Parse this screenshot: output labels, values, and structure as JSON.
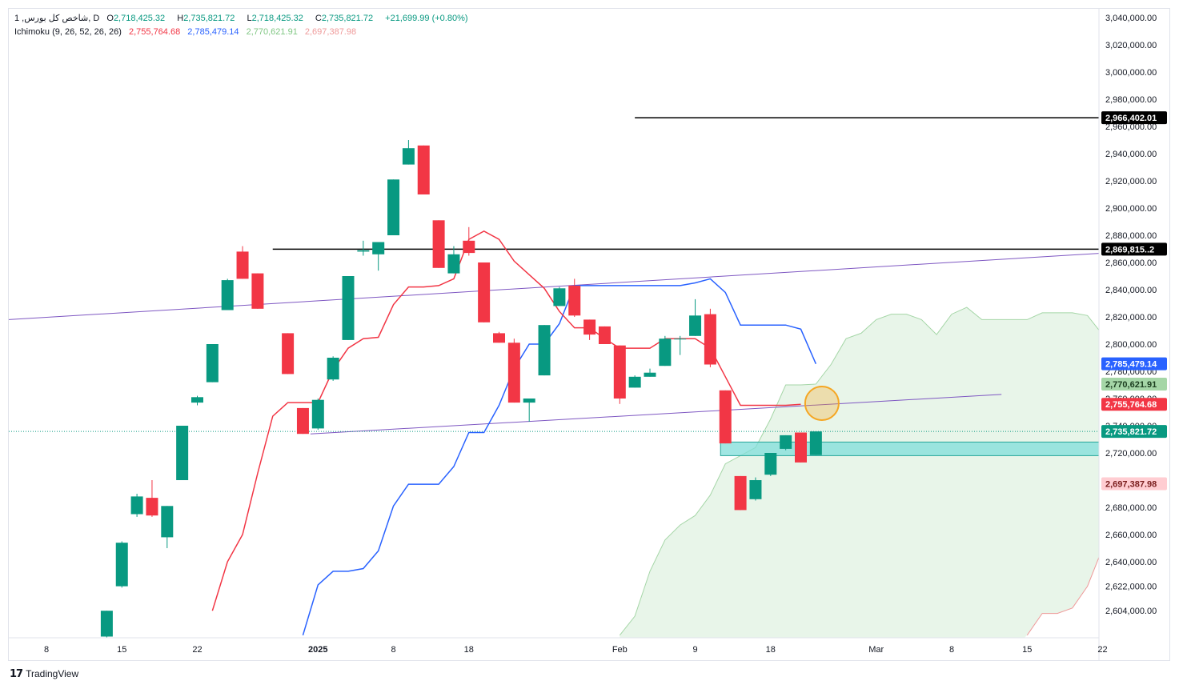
{
  "legend": {
    "symbol": "1 ,شاخص کل بورس, D",
    "o_label": "O",
    "o_value": "2,718,425.32",
    "h_label": "H",
    "h_value": "2,735,821.72",
    "l_label": "L",
    "l_value": "2,718,425.32",
    "c_label": "C",
    "c_value": "2,735,821.72",
    "change": "+21,699.99 (+0.80%)",
    "indicator_name": "Ichimoku (9, 26, 52, 26, 26)",
    "ind_values": [
      "2,755,764.68",
      "2,785,479.14",
      "2,770,621.91",
      "2,697,387.98"
    ]
  },
  "colors": {
    "up": "#089981",
    "down": "#f23645",
    "tenkan": "#f23645",
    "kijun": "#2962ff",
    "span_a": "#a5d6a7",
    "span_b": "#ef9a9a",
    "cloud": "#e8f5e9",
    "trendline": "#7e57c2",
    "hline": "#000000",
    "zone_fill": "#80deda",
    "zone_stroke": "#26a69a",
    "circle": "#f5a623"
  },
  "footer": {
    "brand": "TradingView"
  },
  "chart_data": {
    "type": "candlestick",
    "title": "",
    "y_axis": {
      "min": 2586000,
      "max": 3050000,
      "ticks": [
        3040000,
        3020000,
        3000000,
        2980000,
        2960000,
        2940000,
        2920000,
        2900000,
        2880000,
        2860000,
        2840000,
        2820000,
        2800000,
        2780000,
        2760000,
        2740000,
        2720000,
        2700000,
        2680000,
        2660000,
        2640000,
        2622000,
        2604000
      ],
      "tick_labels": [
        "3,040,000.00",
        "3,020,000.00",
        "3,000,000.00",
        "2,980,000.00",
        "2,960,000.00",
        "2,940,000.00",
        "2,920,000.00",
        "2,900,000.00",
        "2,880,000.00",
        "2,860,000.00",
        "2,840,000.00",
        "2,820,000.00",
        "2,800,000.00",
        "2,780,000.00",
        "2,760,000.00",
        "2,740,000.00",
        "2,720,000.00",
        "2,700,000.00",
        "2,680,000.00",
        "2,660,000.00",
        "2,640,000.00",
        "2,622,000.00",
        "2,604,000.00"
      ]
    },
    "x_axis": {
      "ticks": [
        {
          "i": 0,
          "label": "8"
        },
        {
          "i": 5,
          "label": "15"
        },
        {
          "i": 10,
          "label": "22"
        },
        {
          "i": 18,
          "label": "2025"
        },
        {
          "i": 23,
          "label": "8"
        },
        {
          "i": 28,
          "label": "18"
        },
        {
          "i": 38,
          "label": "Feb"
        },
        {
          "i": 43,
          "label": "9"
        },
        {
          "i": 48,
          "label": "18"
        },
        {
          "i": 55,
          "label": "Mar"
        },
        {
          "i": 60,
          "label": "8"
        },
        {
          "i": 65,
          "label": "15"
        },
        {
          "i": 70,
          "label": "22"
        }
      ],
      "bold_labels": [
        "2025"
      ]
    },
    "candles": [
      {
        "i": 4,
        "o": 2585000,
        "h": 2604000,
        "l": 2580000,
        "c": 2604000
      },
      {
        "i": 5,
        "o": 2622000,
        "h": 2655000,
        "l": 2621000,
        "c": 2654000
      },
      {
        "i": 6,
        "o": 2675000,
        "h": 2690000,
        "l": 2673000,
        "c": 2688000
      },
      {
        "i": 7,
        "o": 2687000,
        "h": 2700000,
        "l": 2673000,
        "c": 2674000
      },
      {
        "i": 8,
        "o": 2658000,
        "h": 2681000,
        "l": 2650000,
        "c": 2681000
      },
      {
        "i": 9,
        "o": 2700000,
        "h": 2740000,
        "l": 2700000,
        "c": 2740000
      },
      {
        "i": 10,
        "o": 2757000,
        "h": 2762000,
        "l": 2755000,
        "c": 2761000
      },
      {
        "i": 11,
        "o": 2772000,
        "h": 2800000,
        "l": 2772000,
        "c": 2800000
      },
      {
        "i": 12,
        "o": 2825000,
        "h": 2848000,
        "l": 2825000,
        "c": 2847000
      },
      {
        "i": 13,
        "o": 2868000,
        "h": 2872000,
        "l": 2848000,
        "c": 2848000
      },
      {
        "i": 14,
        "o": 2852000,
        "h": 2852000,
        "l": 2826000,
        "c": 2826000
      },
      {
        "i": 16,
        "o": 2808000,
        "h": 2808000,
        "l": 2778000,
        "c": 2778000
      },
      {
        "i": 17,
        "o": 2753000,
        "h": 2753000,
        "l": 2734000,
        "c": 2734000
      },
      {
        "i": 18,
        "o": 2738000,
        "h": 2760000,
        "l": 2737000,
        "c": 2759000
      },
      {
        "i": 19,
        "o": 2774000,
        "h": 2791000,
        "l": 2773000,
        "c": 2790000
      },
      {
        "i": 20,
        "o": 2803000,
        "h": 2850000,
        "l": 2803000,
        "c": 2850000
      },
      {
        "i": 21,
        "o": 2868000,
        "h": 2876000,
        "l": 2865000,
        "c": 2869000
      },
      {
        "i": 22,
        "o": 2866000,
        "h": 2873000,
        "l": 2854000,
        "c": 2875000
      },
      {
        "i": 23,
        "o": 2880000,
        "h": 2921000,
        "l": 2880000,
        "c": 2921000
      },
      {
        "i": 24,
        "o": 2932000,
        "h": 2950000,
        "l": 2932000,
        "c": 2944000
      },
      {
        "i": 25,
        "o": 2946000,
        "h": 2946000,
        "l": 2910000,
        "c": 2910000
      },
      {
        "i": 26,
        "o": 2891000,
        "h": 2891000,
        "l": 2856000,
        "c": 2856000
      },
      {
        "i": 27,
        "o": 2852000,
        "h": 2872000,
        "l": 2852000,
        "c": 2866000
      },
      {
        "i": 28,
        "o": 2876000,
        "h": 2886000,
        "l": 2865000,
        "c": 2867000
      },
      {
        "i": 29,
        "o": 2860000,
        "h": 2860000,
        "l": 2816000,
        "c": 2816000
      },
      {
        "i": 30,
        "o": 2808000,
        "h": 2809000,
        "l": 2801000,
        "c": 2801000
      },
      {
        "i": 31,
        "o": 2801000,
        "h": 2804000,
        "l": 2757000,
        "c": 2757000
      },
      {
        "i": 32,
        "o": 2757000,
        "h": 2760000,
        "l": 2743000,
        "c": 2760000
      },
      {
        "i": 33,
        "o": 2777000,
        "h": 2814000,
        "l": 2777000,
        "c": 2814000
      },
      {
        "i": 34,
        "o": 2828000,
        "h": 2842000,
        "l": 2828000,
        "c": 2841000
      },
      {
        "i": 35,
        "o": 2843000,
        "h": 2848000,
        "l": 2820000,
        "c": 2821000
      },
      {
        "i": 36,
        "o": 2818000,
        "h": 2818000,
        "l": 2803000,
        "c": 2807000
      },
      {
        "i": 37,
        "o": 2813000,
        "h": 2813000,
        "l": 2800000,
        "c": 2800000
      },
      {
        "i": 38,
        "o": 2799000,
        "h": 2799000,
        "l": 2756000,
        "c": 2760000
      },
      {
        "i": 39,
        "o": 2768000,
        "h": 2777000,
        "l": 2768000,
        "c": 2776000
      },
      {
        "i": 40,
        "o": 2776000,
        "h": 2782000,
        "l": 2776000,
        "c": 2779000
      },
      {
        "i": 41,
        "o": 2784000,
        "h": 2806000,
        "l": 2784000,
        "c": 2804000
      },
      {
        "i": 42,
        "o": 2804000,
        "h": 2806000,
        "l": 2792000,
        "c": 2804000
      },
      {
        "i": 43,
        "o": 2806000,
        "h": 2833000,
        "l": 2806000,
        "c": 2821000
      },
      {
        "i": 44,
        "o": 2822000,
        "h": 2826000,
        "l": 2783000,
        "c": 2785000
      },
      {
        "i": 45,
        "o": 2766000,
        "h": 2766000,
        "l": 2727000,
        "c": 2727000
      },
      {
        "i": 46,
        "o": 2703000,
        "h": 2703000,
        "l": 2678000,
        "c": 2678000
      },
      {
        "i": 47,
        "o": 2686000,
        "h": 2702000,
        "l": 2685000,
        "c": 2700000
      },
      {
        "i": 48,
        "o": 2704000,
        "h": 2720000,
        "l": 2703000,
        "c": 2720000
      },
      {
        "i": 49,
        "o": 2723000,
        "h": 2733000,
        "l": 2722000,
        "c": 2733000
      },
      {
        "i": 50,
        "o": 2735000,
        "h": 2735000,
        "l": 2713000,
        "c": 2713000
      },
      {
        "i": 51,
        "o": 2718425.32,
        "h": 2735821.72,
        "l": 2718425.32,
        "c": 2735821.72
      }
    ],
    "tenkan": [
      [
        11,
        2604000
      ],
      [
        12,
        2640000
      ],
      [
        13,
        2660000
      ],
      [
        14,
        2705000
      ],
      [
        15,
        2747000
      ],
      [
        16,
        2757000
      ],
      [
        17,
        2757000
      ],
      [
        18,
        2757000
      ],
      [
        19,
        2781000
      ],
      [
        20,
        2797000
      ],
      [
        21,
        2804000
      ],
      [
        22,
        2805000
      ],
      [
        23,
        2829000
      ],
      [
        24,
        2842000
      ],
      [
        25,
        2842000
      ],
      [
        26,
        2843000
      ],
      [
        27,
        2848000
      ],
      [
        28,
        2877000
      ],
      [
        29,
        2883000
      ],
      [
        30,
        2877000
      ],
      [
        31,
        2861000
      ],
      [
        32,
        2851000
      ],
      [
        33,
        2841000
      ],
      [
        34,
        2824000
      ],
      [
        35,
        2812000
      ],
      [
        36,
        2812000
      ],
      [
        37,
        2804000
      ],
      [
        38,
        2797000
      ],
      [
        39,
        2797000
      ],
      [
        40,
        2797000
      ],
      [
        41,
        2804000
      ],
      [
        42,
        2804000
      ],
      [
        43,
        2804000
      ],
      [
        44,
        2797000
      ],
      [
        45,
        2776000
      ],
      [
        46,
        2755000
      ],
      [
        47,
        2755000
      ],
      [
        48,
        2755000
      ],
      [
        49,
        2755000
      ],
      [
        50,
        2755764.68
      ]
    ],
    "kijun": [
      [
        17,
        2586000
      ],
      [
        18,
        2623000
      ],
      [
        19,
        2633000
      ],
      [
        20,
        2633000
      ],
      [
        21,
        2635000
      ],
      [
        22,
        2648000
      ],
      [
        23,
        2681000
      ],
      [
        24,
        2697000
      ],
      [
        25,
        2697000
      ],
      [
        26,
        2697000
      ],
      [
        27,
        2710000
      ],
      [
        28,
        2735000
      ],
      [
        29,
        2735000
      ],
      [
        30,
        2755000
      ],
      [
        31,
        2782000
      ],
      [
        32,
        2800000
      ],
      [
        33,
        2800000
      ],
      [
        34,
        2815000
      ],
      [
        35,
        2843000
      ],
      [
        36,
        2843000
      ],
      [
        37,
        2843000
      ],
      [
        38,
        2843000
      ],
      [
        39,
        2843000
      ],
      [
        40,
        2843000
      ],
      [
        41,
        2843000
      ],
      [
        42,
        2843000
      ],
      [
        43,
        2845000
      ],
      [
        44,
        2848000
      ],
      [
        45,
        2838000
      ],
      [
        46,
        2814000
      ],
      [
        47,
        2814000
      ],
      [
        48,
        2814000
      ],
      [
        49,
        2814000
      ],
      [
        50,
        2811000
      ],
      [
        51,
        2785479.14
      ]
    ],
    "span_a": [
      [
        38,
        2586000
      ],
      [
        39,
        2600000
      ],
      [
        40,
        2633000
      ],
      [
        41,
        2656000
      ],
      [
        42,
        2667000
      ],
      [
        43,
        2674000
      ],
      [
        44,
        2689000
      ],
      [
        45,
        2712000
      ],
      [
        46,
        2718000
      ],
      [
        47,
        2724000
      ],
      [
        48,
        2745000
      ],
      [
        49,
        2770000
      ],
      [
        50,
        2770000
      ],
      [
        51,
        2770621.91
      ],
      [
        52,
        2785000
      ],
      [
        53,
        2804000
      ],
      [
        54,
        2808000
      ],
      [
        55,
        2818000
      ],
      [
        56,
        2822000
      ],
      [
        57,
        2822000
      ],
      [
        58,
        2818000
      ],
      [
        59,
        2807000
      ],
      [
        60,
        2822000
      ],
      [
        61,
        2827000
      ],
      [
        62,
        2818000
      ],
      [
        63,
        2818000
      ],
      [
        64,
        2818000
      ],
      [
        65,
        2818000
      ],
      [
        66,
        2823000
      ],
      [
        67,
        2823000
      ],
      [
        68,
        2823000
      ],
      [
        69,
        2821000
      ],
      [
        70,
        2807000
      ],
      [
        71,
        2780000
      ]
    ],
    "span_b": [
      [
        65,
        2586000
      ],
      [
        66,
        2602000
      ],
      [
        67,
        2602000
      ],
      [
        68,
        2606000
      ],
      [
        69,
        2622000
      ],
      [
        70,
        2650000
      ],
      [
        71,
        2674000
      ],
      [
        72,
        2674000
      ]
    ],
    "horizontal_lines": [
      {
        "y": 2966402.01,
        "x_start": 39,
        "label": "2,966,402.01"
      },
      {
        "y": 2869815.2,
        "x_start": 15,
        "label": "2,869,815..2"
      }
    ],
    "trendlines": [
      {
        "from": [
          -2.5,
          2818000
        ],
        "to": [
          73.2,
          2869000
        ]
      },
      {
        "from": [
          17.5,
          2734000
        ],
        "to": [
          63.3,
          2763000
        ]
      }
    ],
    "current_price": {
      "value": 2735821.72,
      "label": "2,735,821.72"
    },
    "zone": {
      "x_start": 45,
      "x_end": 73.2,
      "y_top": 2728000,
      "y_bottom": 2718000
    },
    "marker_circle": {
      "i": 51.4,
      "y": 2756500
    },
    "price_tags": [
      {
        "value": 2785479.14,
        "label": "2,785,479.14",
        "series": "kijun"
      },
      {
        "value": 2770621.91,
        "label": "2,770,621.91",
        "series": "span_a"
      },
      {
        "value": 2755764.68,
        "label": "2,755,764.68",
        "series": "tenkan"
      },
      {
        "value": 2697387.98,
        "label": "2,697,387.98",
        "series": "span_b"
      }
    ]
  }
}
